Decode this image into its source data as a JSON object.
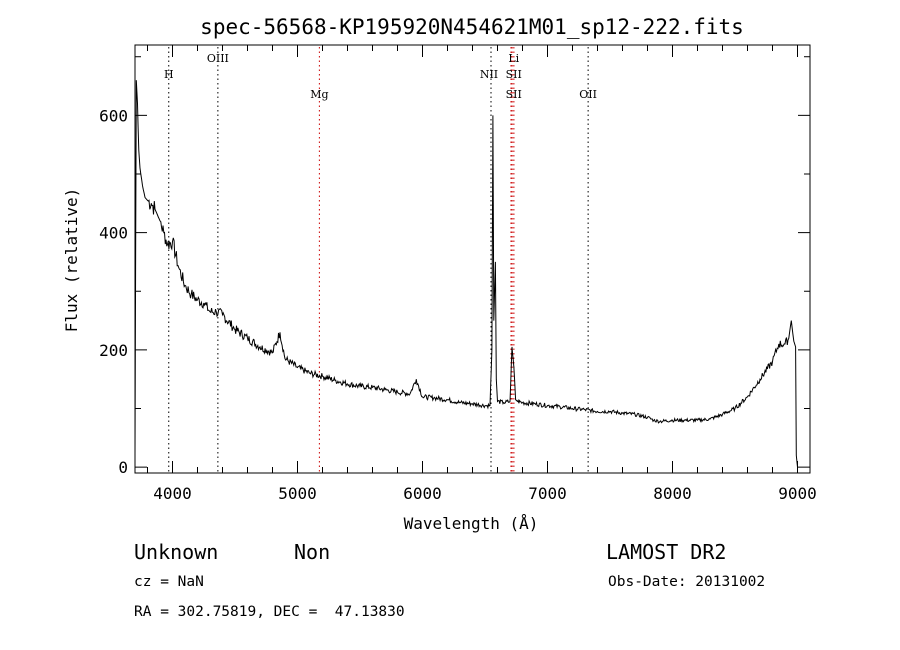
{
  "chart_data": {
    "type": "line",
    "title": "spec-56568-KP195920N454621M01_sp12-222.fits",
    "xlabel": "Wavelength (Å)",
    "ylabel": "Flux (relative)",
    "xlim": [
      3700,
      9100
    ],
    "ylim": [
      -10,
      720
    ],
    "x_ticks": [
      4000,
      5000,
      6000,
      7000,
      8000,
      9000
    ],
    "y_ticks": [
      0,
      200,
      400,
      600
    ],
    "grid": false,
    "series": [
      {
        "values_description_free": true,
        "x": [
          3700,
          3710,
          3720,
          3730,
          3740,
          3760,
          3780,
          3800,
          3830,
          3860,
          3880,
          3900,
          3930,
          3960,
          4000,
          4050,
          4100,
          4150,
          4200,
          4250,
          4300,
          4350,
          4400,
          4500,
          4600,
          4700,
          4800,
          4860,
          4900,
          5000,
          5100,
          5200,
          5300,
          5400,
          5500,
          5600,
          5700,
          5800,
          5900,
          5950,
          6000,
          6100,
          6200,
          6300,
          6400,
          6500,
          6540,
          6555,
          6563,
          6570,
          6583,
          6590,
          6600,
          6650,
          6700,
          6716,
          6731,
          6745,
          6760,
          6800,
          6900,
          7000,
          7100,
          7200,
          7300,
          7400,
          7500,
          7600,
          7700,
          7800,
          7850,
          7900,
          8000,
          8100,
          8200,
          8300,
          8400,
          8500,
          8600,
          8700,
          8800,
          8850,
          8900,
          8930,
          8950,
          8970,
          8985,
          8990,
          9000
        ],
        "y": [
          20,
          660,
          620,
          540,
          510,
          480,
          460,
          455,
          450,
          440,
          430,
          420,
          400,
          380,
          385,
          340,
          310,
          295,
          285,
          280,
          265,
          265,
          260,
          235,
          220,
          205,
          195,
          230,
          185,
          170,
          160,
          155,
          148,
          142,
          138,
          136,
          132,
          128,
          125,
          150,
          120,
          118,
          115,
          110,
          108,
          105,
          105,
          200,
          600,
          250,
          350,
          150,
          112,
          110,
          112,
          205,
          170,
          115,
          112,
          110,
          108,
          105,
          103,
          100,
          98,
          95,
          95,
          92,
          90,
          85,
          80,
          78,
          80,
          80,
          80,
          82,
          90,
          100,
          120,
          150,
          180,
          210,
          210,
          220,
          250,
          215,
          205,
          20,
          0
        ]
      }
    ],
    "reference_lines": [
      {
        "label": "H",
        "x": 3970,
        "color": "#000000"
      },
      {
        "label": "OIII",
        "x": 4363,
        "color": "#000000"
      },
      {
        "label": "Mg",
        "x": 5175,
        "color": "#cc0000"
      },
      {
        "label": "NII",
        "x": 6548,
        "color": "#000000"
      },
      {
        "label": "Li",
        "x": 6708,
        "color": "#cc0000"
      },
      {
        "label": "SII",
        "x": 6717,
        "color": "#cc0000"
      },
      {
        "label": "SII",
        "x": 6731,
        "color": "#cc0000"
      },
      {
        "label": "OII",
        "x": 7325,
        "color": "#000000"
      }
    ]
  },
  "info": {
    "class_label": "Unknown",
    "subclass_label": "Non",
    "survey": "LAMOST DR2",
    "cz": "cz = NaN",
    "obs_date": "Obs-Date: 20131002",
    "coords": "RA = 302.75819, DEC =  47.13830"
  }
}
